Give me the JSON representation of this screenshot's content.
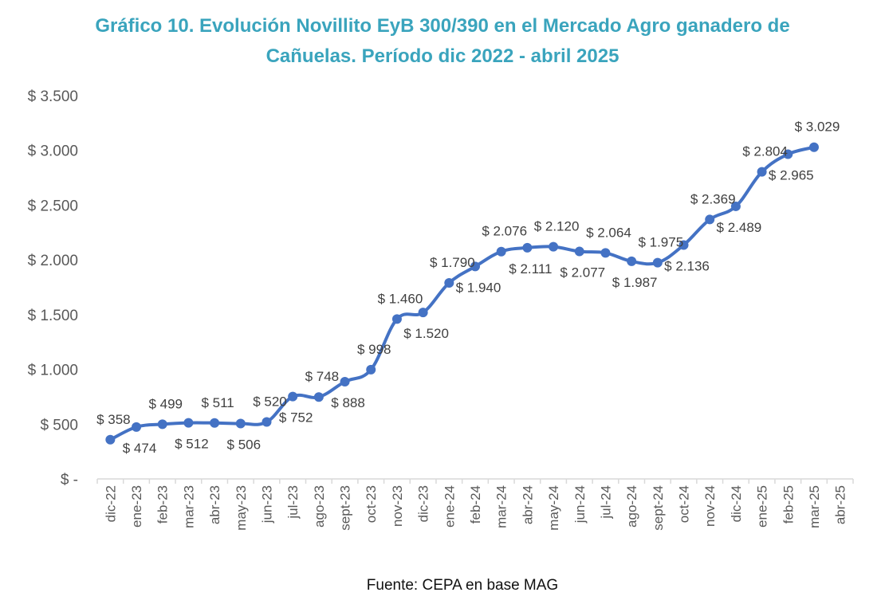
{
  "chart_data": {
    "type": "line",
    "title_line1": "Gráfico 10. Evolución Novillito EyB 300/390 en el Mercado Agro ganadero de",
    "title_line2": "Cañuelas. Período dic 2022 - abril 2025",
    "source": "Fuente: CEPA en base MAG",
    "xlabel": "",
    "ylabel": "",
    "ylim": [
      0,
      3500
    ],
    "yticks": [
      0,
      500,
      1000,
      1500,
      2000,
      2500,
      3000,
      3500
    ],
    "ytick_labels": [
      "$ -",
      "$ 500",
      "$ 1.000",
      "$ 1.500",
      "$ 2.000",
      "$ 2.500",
      "$ 3.000",
      "$ 3.500"
    ],
    "grid": false,
    "legend": "none",
    "line_color": "#4472c4",
    "categories": [
      "dic-22",
      "ene-23",
      "feb-23",
      "mar-23",
      "abr-23",
      "may-23",
      "jun-23",
      "jul-23",
      "ago-23",
      "sept-23",
      "oct-23",
      "nov-23",
      "dic-23",
      "ene-24",
      "feb-24",
      "mar-24",
      "abr-24",
      "may-24",
      "jun-24",
      "jul-24",
      "ago-24",
      "sept-24",
      "oct-24",
      "nov-24",
      "dic-24",
      "ene-25",
      "feb-25",
      "mar-25",
      "abr-25"
    ],
    "series": [
      {
        "values": [
          358,
          474,
          499,
          512,
          511,
          506,
          520,
          752,
          748,
          888,
          998,
          1460,
          1520,
          1790,
          1940,
          2076,
          2111,
          2120,
          2077,
          2064,
          1987,
          1975,
          2136,
          2369,
          2489,
          2804,
          2965,
          3029,
          null
        ],
        "labels": [
          "$ 358",
          "$ 474",
          "$ 499",
          "$ 512",
          "$ 511",
          "$ 506",
          "$ 520",
          "$ 752",
          "$ 748",
          "$ 888",
          "$ 998",
          "$ 1.460",
          "$ 1.520",
          "$ 1.790",
          "$ 1.940",
          "$ 2.076",
          "$ 2.111",
          "$ 2.120",
          "$ 2.077",
          "$ 2.064",
          "$ 1.987",
          "$ 1.975",
          "$ 2.136",
          "$ 2.369",
          "$ 2.489",
          "$ 2.804",
          "$ 2.965",
          "$ 3.029",
          ""
        ],
        "label_positions": [
          "above",
          "below",
          "above",
          "below",
          "above",
          "below",
          "above",
          "below",
          "above",
          "below",
          "above",
          "above",
          "below",
          "above",
          "below",
          "above",
          "below",
          "above",
          "below",
          "above",
          "below",
          "above",
          "below",
          "above",
          "below",
          "above",
          "below",
          "above",
          "none"
        ]
      }
    ]
  }
}
